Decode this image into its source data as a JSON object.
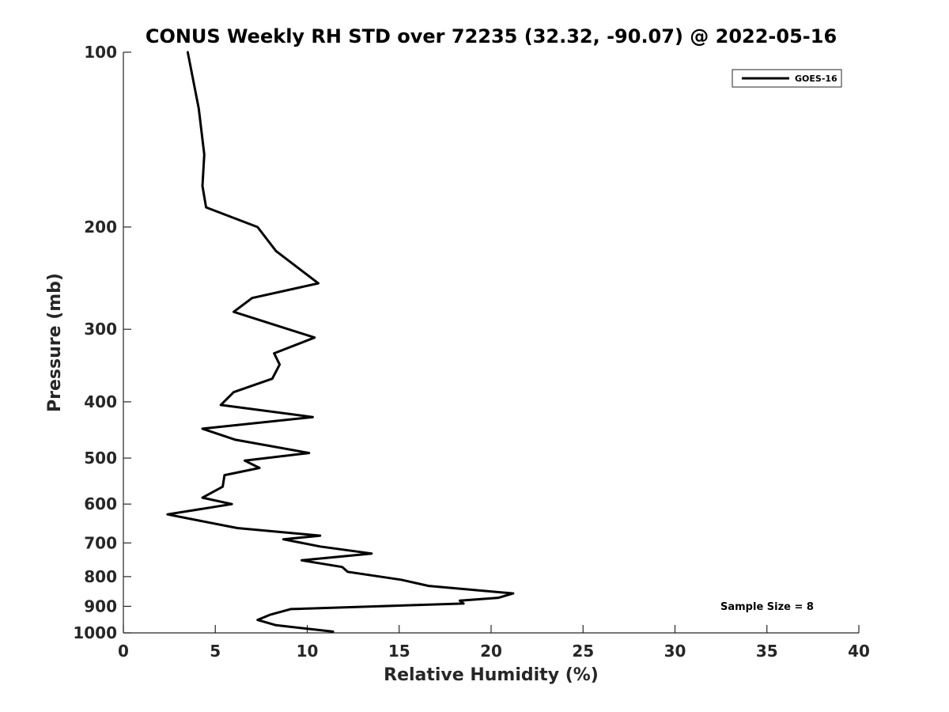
{
  "chart_data": {
    "type": "line",
    "title": "CONUS Weekly RH STD over 72235 (32.32, -90.07) @ 2022-05-16",
    "xlabel": "Relative Humidity (%)",
    "ylabel": "Pressure (mb)",
    "xlim": [
      0,
      40
    ],
    "ylim": [
      100,
      1000
    ],
    "y_scale": "log",
    "y_reversed": true,
    "x_ticks": [
      0,
      5,
      10,
      15,
      20,
      25,
      30,
      35,
      40
    ],
    "x_tick_labels": [
      "0",
      "5",
      "10",
      "15",
      "20",
      "25",
      "30",
      "35",
      "40"
    ],
    "y_ticks": [
      100,
      200,
      300,
      400,
      500,
      600,
      700,
      800,
      900,
      1000
    ],
    "y_tick_labels": [
      "100",
      "200",
      "300",
      "400",
      "500",
      "600",
      "700",
      "800",
      "900",
      "1000"
    ],
    "grid": false,
    "legend_position": "top-right",
    "annotation": "Sample Size = 8",
    "series": [
      {
        "name": "GOES-16",
        "color": "#000000",
        "x": [
          3.5,
          4.1,
          4.4,
          4.3,
          4.5,
          7.3,
          8.3,
          10.6,
          7.0,
          6.0,
          10.4,
          8.2,
          8.5,
          8.1,
          6.0,
          5.3,
          10.3,
          4.3,
          6.1,
          10.1,
          6.6,
          7.4,
          5.5,
          5.4,
          4.3,
          5.9,
          2.4,
          6.2,
          10.7,
          8.7,
          10.7,
          13.5,
          9.7,
          11.9,
          12.2,
          15.1,
          16.6,
          21.2,
          20.4,
          18.3,
          18.5,
          9.1,
          8.0,
          7.3,
          8.3,
          11.4
        ],
        "y": [
          100,
          125,
          150,
          170,
          185,
          200,
          220,
          250,
          265,
          280,
          310,
          330,
          345,
          365,
          385,
          405,
          425,
          445,
          465,
          490,
          505,
          520,
          535,
          560,
          585,
          600,
          625,
          660,
          680,
          690,
          710,
          730,
          750,
          770,
          785,
          810,
          830,
          855,
          870,
          880,
          890,
          910,
          930,
          950,
          970,
          995
        ]
      }
    ]
  },
  "legend": {
    "label": "GOES-16"
  }
}
